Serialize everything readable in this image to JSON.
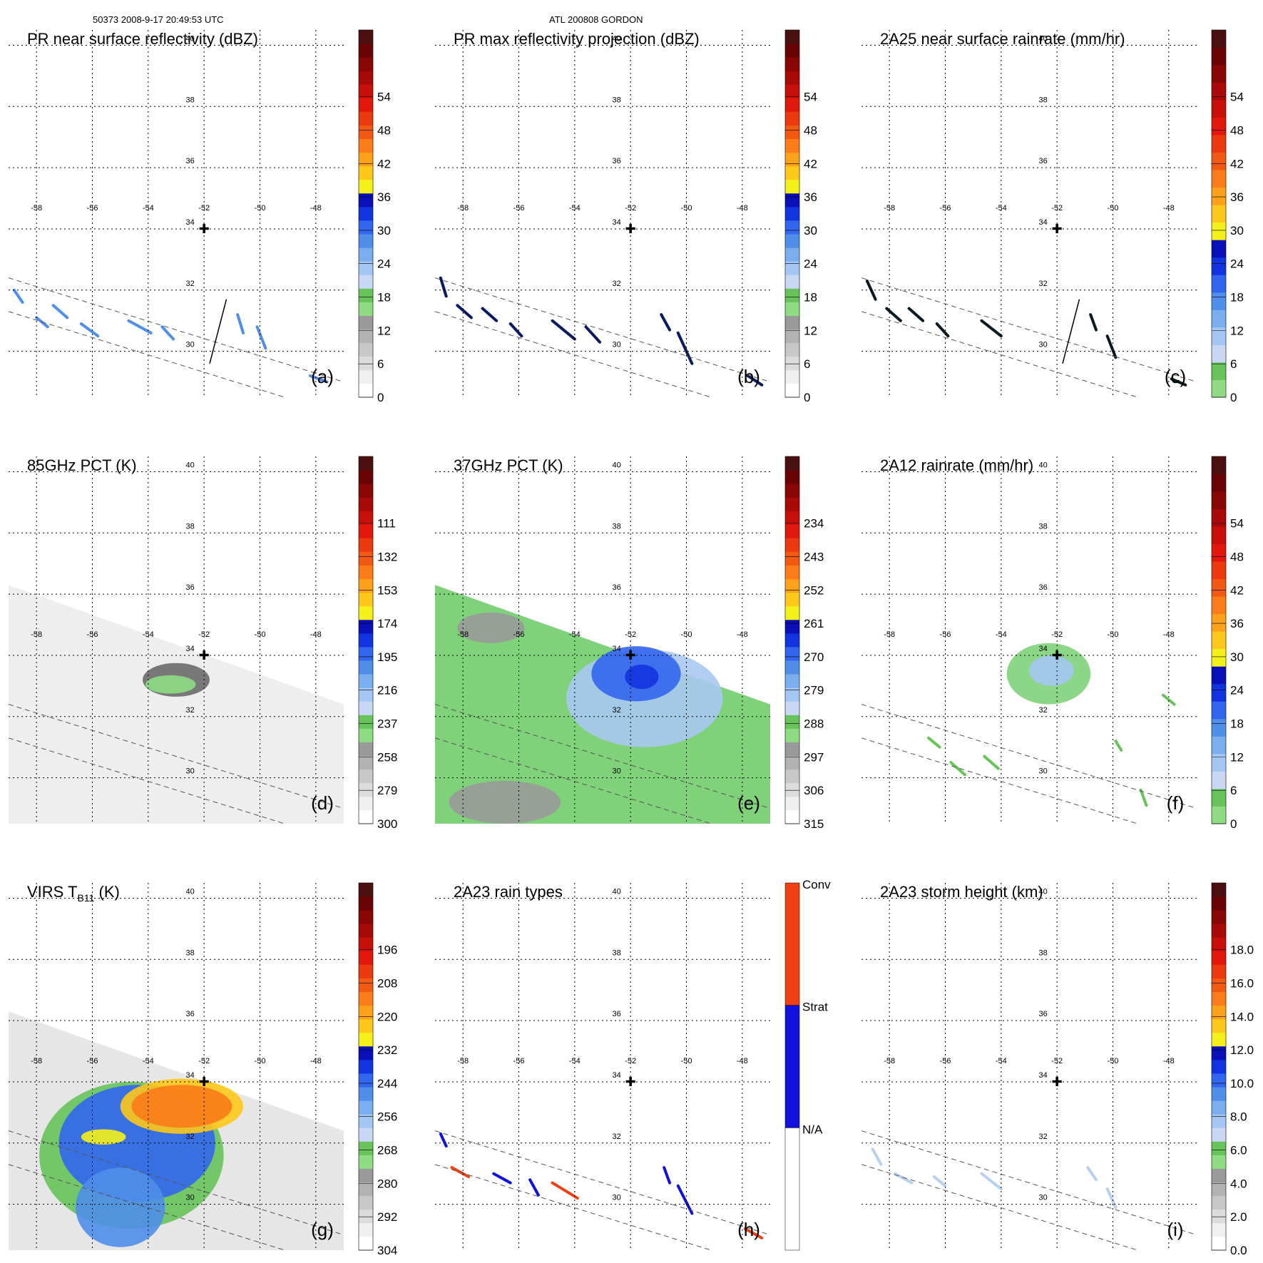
{
  "header": {
    "orbit_time": "50373 2008-9-17 20:49:53 UTC",
    "storm": "ATL 200808 GORDON"
  },
  "chart_data": [
    {
      "id": "a",
      "type": "heatmap",
      "title": "PR near surface reflectivity (dBZ)",
      "panel_label": "(a)",
      "colorbar": {
        "ticks": [
          "0",
          "6",
          "12",
          "18",
          "24",
          "30",
          "36",
          "42",
          "48",
          "54"
        ],
        "top_bins": 1,
        "colors": [
          "#ffffff",
          "#f0f0f0",
          "#dcdcdc",
          "#c8c8c8",
          "#b2b2b2",
          "#9a9a9a",
          "#8edb84",
          "#67c35a",
          "#c8d8f4",
          "#a4c6f2",
          "#7aaeee",
          "#4f8ee9",
          "#3366ee",
          "#1233e0",
          "#0a10b8",
          "#f4f01a",
          "#fec81a",
          "#fda01a",
          "#fb7c18",
          "#f25a14",
          "#ec3a10",
          "#e2180c",
          "#c8100a",
          "#a80a08",
          "#880604",
          "#6a0404",
          "#4a1010"
        ]
      },
      "show_swath_line": true,
      "rain_cells": [
        [
          [
            -58.8,
            32.0
          ],
          [
            -58.5,
            31.6
          ]
        ],
        [
          [
            -58.0,
            31.1
          ],
          [
            -57.6,
            30.8
          ]
        ],
        [
          [
            -57.4,
            31.5
          ],
          [
            -56.9,
            31.1
          ]
        ],
        [
          [
            -56.4,
            30.9
          ],
          [
            -55.8,
            30.5
          ]
        ],
        [
          [
            -54.7,
            31.0
          ],
          [
            -53.9,
            30.6
          ]
        ],
        [
          [
            -53.5,
            30.8
          ],
          [
            -53.1,
            30.4
          ]
        ],
        [
          [
            -50.8,
            31.2
          ],
          [
            -50.6,
            30.6
          ]
        ],
        [
          [
            -50.1,
            30.8
          ],
          [
            -49.8,
            30.1
          ]
        ],
        [
          [
            -48.2,
            29.2
          ],
          [
            -47.6,
            29.0
          ]
        ]
      ],
      "cell_color": "#4f8ee9"
    },
    {
      "id": "b",
      "type": "heatmap",
      "title": "PR max reflectivity projection (dBZ)",
      "panel_label": "(b)",
      "colorbar": {
        "ticks": [
          "0",
          "6",
          "12",
          "18",
          "24",
          "30",
          "36",
          "42",
          "48",
          "54"
        ],
        "top_bins": 1,
        "colors": [
          "#ffffff",
          "#f0f0f0",
          "#dcdcdc",
          "#c8c8c8",
          "#b2b2b2",
          "#9a9a9a",
          "#8edb84",
          "#67c35a",
          "#c8d8f4",
          "#a4c6f2",
          "#7aaeee",
          "#4f8ee9",
          "#3366ee",
          "#1233e0",
          "#0a10b8",
          "#f4f01a",
          "#fec81a",
          "#fda01a",
          "#fb7c18",
          "#f25a14",
          "#ec3a10",
          "#e2180c",
          "#c8100a",
          "#a80a08",
          "#880604",
          "#6a0404",
          "#4a1010"
        ]
      },
      "show_swath_line": false,
      "rain_cells": [
        [
          [
            -58.8,
            32.4
          ],
          [
            -58.6,
            31.8
          ]
        ],
        [
          [
            -58.2,
            31.5
          ],
          [
            -57.7,
            31.1
          ]
        ],
        [
          [
            -57.3,
            31.4
          ],
          [
            -56.8,
            31.0
          ]
        ],
        [
          [
            -56.3,
            30.9
          ],
          [
            -55.9,
            30.5
          ]
        ],
        [
          [
            -54.8,
            31.0
          ],
          [
            -54.0,
            30.4
          ]
        ],
        [
          [
            -53.6,
            30.8
          ],
          [
            -53.1,
            30.3
          ]
        ],
        [
          [
            -50.9,
            31.2
          ],
          [
            -50.6,
            30.7
          ]
        ],
        [
          [
            -50.3,
            30.6
          ],
          [
            -49.8,
            29.6
          ]
        ],
        [
          [
            -47.8,
            29.2
          ],
          [
            -47.3,
            28.9
          ]
        ]
      ],
      "cell_color": "#0a1a60"
    },
    {
      "id": "c",
      "type": "heatmap",
      "title": "2A25 near surface rainrate (mm/hr)",
      "panel_label": "(c)",
      "colorbar": {
        "ticks": [
          "0",
          "6",
          "12",
          "18",
          "24",
          "30",
          "36",
          "42",
          "48",
          "54"
        ],
        "top_bins": 1,
        "colors": [
          "#8edb84",
          "#67c35a",
          "#c8d8f4",
          "#a4c6f2",
          "#7aaeee",
          "#4f8ee9",
          "#3366ee",
          "#1233e0",
          "#0a10b8",
          "#f4f01a",
          "#fec81a",
          "#fda01a",
          "#fb7c18",
          "#f25a14",
          "#ec3a10",
          "#e2180c",
          "#c8100a",
          "#a80a08",
          "#880604",
          "#6a0404",
          "#4a1010"
        ]
      },
      "show_swath_line": true,
      "rain_cells": [
        [
          [
            -58.8,
            32.3
          ],
          [
            -58.5,
            31.7
          ]
        ],
        [
          [
            -58.1,
            31.4
          ],
          [
            -57.6,
            31.0
          ]
        ],
        [
          [
            -57.3,
            31.4
          ],
          [
            -56.8,
            31.0
          ]
        ],
        [
          [
            -56.3,
            30.9
          ],
          [
            -55.9,
            30.5
          ]
        ],
        [
          [
            -54.7,
            31.0
          ],
          [
            -54.0,
            30.5
          ]
        ],
        [
          [
            -50.8,
            31.2
          ],
          [
            -50.6,
            30.7
          ]
        ],
        [
          [
            -50.2,
            30.5
          ],
          [
            -49.9,
            29.8
          ]
        ],
        [
          [
            -47.9,
            29.1
          ],
          [
            -47.4,
            28.9
          ]
        ]
      ],
      "cell_color": "#0a1a20"
    },
    {
      "id": "d",
      "type": "heatmap",
      "title": "85GHz PCT (K)",
      "panel_label": "(d)",
      "colorbar": {
        "ticks": [
          "300",
          "279",
          "258",
          "237",
          "216",
          "195",
          "174",
          "153",
          "132",
          "111"
        ],
        "top_bins": 1,
        "colors": [
          "#ffffff",
          "#f0f0f0",
          "#dcdcdc",
          "#c8c8c8",
          "#b2b2b2",
          "#9a9a9a",
          "#8edb84",
          "#67c35a",
          "#c8d8f4",
          "#a4c6f2",
          "#7aaeee",
          "#4f8ee9",
          "#3366ee",
          "#1233e0",
          "#0a10b8",
          "#f4f01a",
          "#fec81a",
          "#fda01a",
          "#fb7c18",
          "#f25a14",
          "#ec3a10",
          "#e2180c",
          "#c8100a",
          "#a80a08",
          "#880604",
          "#6a0404",
          "#4a1010"
        ]
      },
      "swath_fill": "#eeeeee",
      "features": [
        {
          "kind": "ellipse",
          "lon": -53.0,
          "lat": 33.2,
          "rx": 1.2,
          "ry": 0.55,
          "fill": "#6a6a6a"
        },
        {
          "kind": "ellipse",
          "lon": -53.2,
          "lat": 33.05,
          "rx": 0.9,
          "ry": 0.3,
          "fill": "#8edb84"
        }
      ]
    },
    {
      "id": "e",
      "type": "heatmap",
      "title": "37GHz PCT (K)",
      "panel_label": "(e)",
      "colorbar": {
        "ticks": [
          "315",
          "306",
          "297",
          "288",
          "279",
          "270",
          "261",
          "252",
          "243",
          "234"
        ],
        "top_bins": 1,
        "colors": [
          "#ffffff",
          "#f0f0f0",
          "#dcdcdc",
          "#c8c8c8",
          "#b2b2b2",
          "#9a9a9a",
          "#8edb84",
          "#67c35a",
          "#c8d8f4",
          "#a4c6f2",
          "#7aaeee",
          "#4f8ee9",
          "#3366ee",
          "#1233e0",
          "#0a10b8",
          "#f4f01a",
          "#fec81a",
          "#fda01a",
          "#fb7c18",
          "#f25a14",
          "#ec3a10",
          "#e2180c",
          "#c8100a",
          "#a80a08",
          "#880604",
          "#6a0404",
          "#4a1010"
        ]
      },
      "swath_fill": "#7fd27a",
      "features": [
        {
          "kind": "ellipse",
          "lon": -51.5,
          "lat": 32.6,
          "rx": 2.8,
          "ry": 1.6,
          "fill": "#a8c8f0"
        },
        {
          "kind": "ellipse",
          "lon": -51.8,
          "lat": 33.4,
          "rx": 1.6,
          "ry": 0.9,
          "fill": "#3366ee"
        },
        {
          "kind": "ellipse",
          "lon": -51.6,
          "lat": 33.3,
          "rx": 0.6,
          "ry": 0.4,
          "fill": "#1233e0"
        },
        {
          "kind": "ellipse",
          "lon": -57.0,
          "lat": 34.9,
          "rx": 1.2,
          "ry": 0.5,
          "fill": "#9a9a9a"
        },
        {
          "kind": "ellipse",
          "lon": -56.5,
          "lat": 29.2,
          "rx": 2.0,
          "ry": 0.7,
          "fill": "#9a9a9a"
        }
      ]
    },
    {
      "id": "f",
      "type": "heatmap",
      "title": "2A12 rainrate (mm/hr)",
      "panel_label": "(f)",
      "colorbar": {
        "ticks": [
          "0",
          "6",
          "12",
          "18",
          "24",
          "30",
          "36",
          "42",
          "48",
          "54"
        ],
        "top_bins": 1,
        "colors": [
          "#8edb84",
          "#67c35a",
          "#c8d8f4",
          "#a4c6f2",
          "#7aaeee",
          "#4f8ee9",
          "#3366ee",
          "#1233e0",
          "#0a10b8",
          "#f4f01a",
          "#fec81a",
          "#fda01a",
          "#fb7c18",
          "#f25a14",
          "#ec3a10",
          "#e2180c",
          "#c8100a",
          "#a80a08",
          "#880604",
          "#6a0404",
          "#4a1010"
        ]
      },
      "features": [
        {
          "kind": "ellipse",
          "lon": -52.3,
          "lat": 33.4,
          "rx": 1.5,
          "ry": 1.0,
          "fill": "#7fd27a"
        },
        {
          "kind": "ellipse",
          "lon": -52.2,
          "lat": 33.5,
          "rx": 0.8,
          "ry": 0.5,
          "fill": "#a4c6f2"
        }
      ],
      "rain_cells": [
        [
          [
            -56.6,
            31.3
          ],
          [
            -56.2,
            31.0
          ]
        ],
        [
          [
            -55.8,
            30.5
          ],
          [
            -55.3,
            30.1
          ]
        ],
        [
          [
            -54.6,
            30.7
          ],
          [
            -54.1,
            30.3
          ]
        ],
        [
          [
            -48.2,
            32.7
          ],
          [
            -47.8,
            32.4
          ]
        ],
        [
          [
            -49.9,
            31.2
          ],
          [
            -49.7,
            30.9
          ]
        ],
        [
          [
            -49.0,
            29.6
          ],
          [
            -48.8,
            29.1
          ]
        ]
      ],
      "cell_color": "#67c35a"
    },
    {
      "id": "g",
      "type": "heatmap",
      "title": "VIRS T",
      "title_sub": "B11",
      "title_suffix": " (K)",
      "panel_label": "(g)",
      "colorbar": {
        "ticks": [
          "304",
          "292",
          "280",
          "268",
          "256",
          "244",
          "232",
          "220",
          "208",
          "196"
        ],
        "top_bins": 1,
        "colors": [
          "#ffffff",
          "#f0f0f0",
          "#dcdcdc",
          "#c8c8c8",
          "#b2b2b2",
          "#9a9a9a",
          "#8edb84",
          "#67c35a",
          "#c8d8f4",
          "#a4c6f2",
          "#7aaeee",
          "#4f8ee9",
          "#3366ee",
          "#1233e0",
          "#0a10b8",
          "#f4f01a",
          "#fec81a",
          "#fda01a",
          "#fb7c18",
          "#f25a14",
          "#ec3a10",
          "#e2180c",
          "#c8100a",
          "#a80a08",
          "#880604",
          "#6a0404",
          "#4a1010"
        ]
      },
      "swath_fill": "#e6e6e6",
      "features": [
        {
          "kind": "ellipse",
          "lon": -54.6,
          "lat": 31.6,
          "rx": 3.3,
          "ry": 2.4,
          "fill": "#67c35a"
        },
        {
          "kind": "ellipse",
          "lon": -54.4,
          "lat": 32.0,
          "rx": 2.8,
          "ry": 1.9,
          "fill": "#3366ee"
        },
        {
          "kind": "ellipse",
          "lon": -55.0,
          "lat": 29.9,
          "rx": 1.6,
          "ry": 1.3,
          "fill": "#4f8ee9"
        },
        {
          "kind": "ellipse",
          "lon": -52.8,
          "lat": 33.2,
          "rx": 2.2,
          "ry": 0.9,
          "fill": "#fec81a"
        },
        {
          "kind": "ellipse",
          "lon": -52.8,
          "lat": 33.2,
          "rx": 1.8,
          "ry": 0.7,
          "fill": "#fb7c18"
        },
        {
          "kind": "ellipse",
          "lon": -55.6,
          "lat": 32.2,
          "rx": 0.8,
          "ry": 0.25,
          "fill": "#f4f01a"
        }
      ]
    },
    {
      "id": "h",
      "type": "heatmap",
      "title": "2A23 rain types",
      "panel_label": "(h)",
      "colorbar": {
        "categorical": true,
        "ticks": [
          "N/A",
          "Strat",
          "Conv"
        ],
        "colors": [
          "#ffffff",
          "#1010e0",
          "#ee4010"
        ]
      },
      "rain_cells": [
        [
          [
            -58.8,
            32.3
          ],
          [
            -58.6,
            31.9
          ]
        ],
        [
          [
            -58.4,
            31.2
          ],
          [
            -57.8,
            30.9
          ]
        ],
        [
          [
            -56.9,
            31.0
          ],
          [
            -56.3,
            30.7
          ]
        ],
        [
          [
            -55.6,
            30.8
          ],
          [
            -55.3,
            30.3
          ]
        ],
        [
          [
            -54.8,
            30.7
          ],
          [
            -53.9,
            30.2
          ]
        ],
        [
          [
            -50.8,
            31.2
          ],
          [
            -50.6,
            30.7
          ]
        ],
        [
          [
            -50.3,
            30.6
          ],
          [
            -49.8,
            29.7
          ]
        ],
        [
          [
            -47.9,
            29.2
          ],
          [
            -47.3,
            28.9
          ]
        ]
      ],
      "cell_color": "#1010e0",
      "cell_colors_alt": "#ee4010"
    },
    {
      "id": "i",
      "type": "heatmap",
      "title": "2A23 storm height (km)",
      "panel_label": "(i)",
      "colorbar": {
        "ticks": [
          "0.0",
          "2.0",
          "4.0",
          "6.0",
          "8.0",
          "10.0",
          "12.0",
          "14.0",
          "16.0",
          "18.0"
        ],
        "top_bins": 1,
        "colors": [
          "#ffffff",
          "#f0f0f0",
          "#dcdcdc",
          "#c8c8c8",
          "#b2b2b2",
          "#9a9a9a",
          "#8edb84",
          "#67c35a",
          "#c8d8f4",
          "#a4c6f2",
          "#7aaeee",
          "#4f8ee9",
          "#3366ee",
          "#1233e0",
          "#0a10b8",
          "#f4f01a",
          "#fec81a",
          "#fda01a",
          "#fb7c18",
          "#f25a14",
          "#ec3a10",
          "#e2180c",
          "#c8100a",
          "#a80a08",
          "#880604",
          "#6a0404",
          "#4a1010"
        ]
      },
      "rain_cells": [
        [
          [
            -58.6,
            31.8
          ],
          [
            -58.3,
            31.3
          ]
        ],
        [
          [
            -57.8,
            31.0
          ],
          [
            -57.2,
            30.7
          ]
        ],
        [
          [
            -56.4,
            30.9
          ],
          [
            -56.0,
            30.6
          ]
        ],
        [
          [
            -54.7,
            31.0
          ],
          [
            -54.0,
            30.5
          ]
        ],
        [
          [
            -50.9,
            31.2
          ],
          [
            -50.6,
            30.8
          ]
        ],
        [
          [
            -50.2,
            30.5
          ],
          [
            -49.9,
            29.9
          ]
        ]
      ],
      "cell_color": "#b8d0f0"
    }
  ],
  "map": {
    "lon_ticks": [
      "-58",
      "-56",
      "-54",
      "-52",
      "-50",
      "-48"
    ],
    "lat_ticks": [
      "30",
      "32",
      "34",
      "36",
      "38",
      "40"
    ],
    "lon_range": [
      -59.0,
      -47.0
    ],
    "lat_range": [
      28.5,
      40.5
    ],
    "center_marker": {
      "lon": -52.0,
      "lat": 34.0,
      "symbol": "✚"
    }
  }
}
